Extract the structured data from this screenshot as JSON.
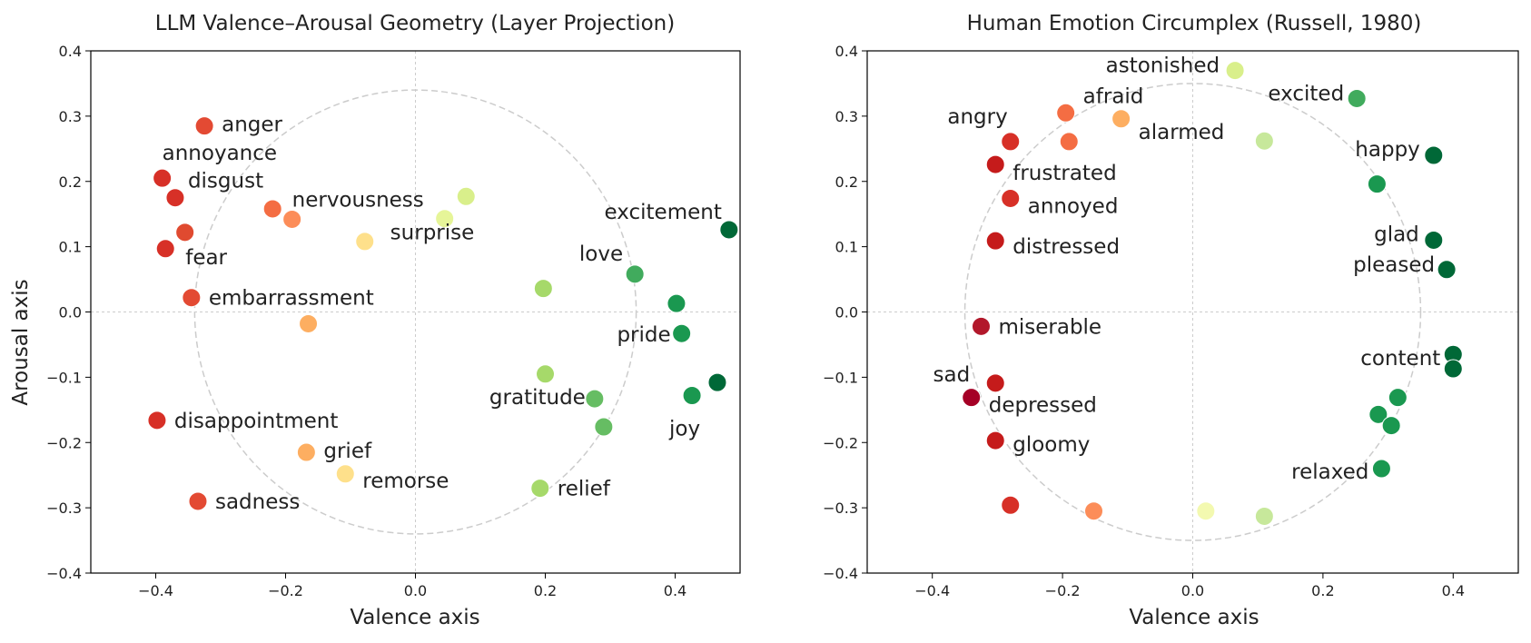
{
  "figure": {
    "panels": [
      {
        "title": "LLM Valence–Arousal Geometry (Layer Projection)",
        "xlabel": "Valence axis",
        "ylabel": "Arousal axis"
      },
      {
        "title": "Human Emotion Circumplex (Russell, 1980)",
        "xlabel": "Valence axis",
        "ylabel": ""
      }
    ]
  },
  "chart_data": [
    {
      "type": "scatter",
      "title": "LLM Valence–Arousal Geometry (Layer Projection)",
      "xlabel": "Valence axis",
      "ylabel": "Arousal axis",
      "xlim": [
        -0.5,
        0.5
      ],
      "ylim": [
        -0.4,
        0.4
      ],
      "xticks": [
        -0.4,
        -0.2,
        0.0,
        0.2,
        0.4
      ],
      "yticks": [
        -0.4,
        -0.3,
        -0.2,
        -0.1,
        0.0,
        0.1,
        0.2,
        0.3,
        0.4
      ],
      "grid": false,
      "reference_lines": "dotted lines at x=0 and y=0",
      "reference_circle": {
        "center": [
          0.0,
          0.0
        ],
        "radius": 0.34,
        "style": "dashed light gray"
      },
      "colormap": "red-yellow-green by valence",
      "points": [
        {
          "label": "anger",
          "x": -0.325,
          "y": 0.285,
          "color": "#e34a33"
        },
        {
          "label": "annoyance",
          "x": -0.39,
          "y": 0.205,
          "color": "#d73027"
        },
        {
          "label": "disgust",
          "x": -0.37,
          "y": 0.175,
          "color": "#d73027"
        },
        {
          "label": "",
          "x": -0.355,
          "y": 0.122,
          "color": "#e04a30"
        },
        {
          "label": "fear",
          "x": -0.385,
          "y": 0.097,
          "color": "#d73027"
        },
        {
          "label": "embarrassment",
          "x": -0.345,
          "y": 0.022,
          "color": "#e34a33"
        },
        {
          "label": "",
          "x": -0.22,
          "y": 0.158,
          "color": "#f46d43"
        },
        {
          "label": "nervousness",
          "x": -0.19,
          "y": 0.142,
          "color": "#fc8d59"
        },
        {
          "label": "",
          "x": 0.078,
          "y": 0.177,
          "color": "#d9ef8b"
        },
        {
          "label": "surprise",
          "x": 0.045,
          "y": 0.143,
          "color": "#e6f598"
        },
        {
          "label": "",
          "x": -0.078,
          "y": 0.108,
          "color": "#fee08b"
        },
        {
          "label": "",
          "x": -0.165,
          "y": -0.018,
          "color": "#fdae61"
        },
        {
          "label": "excitement",
          "x": 0.483,
          "y": 0.126,
          "color": "#006837"
        },
        {
          "label": "love",
          "x": 0.338,
          "y": 0.058,
          "color": "#41ab5d"
        },
        {
          "label": "",
          "x": 0.402,
          "y": 0.013,
          "color": "#1a9850"
        },
        {
          "label": "",
          "x": 0.197,
          "y": 0.036,
          "color": "#a6d96a"
        },
        {
          "label": "pride",
          "x": 0.41,
          "y": -0.033,
          "color": "#1a9850"
        },
        {
          "label": "",
          "x": 0.2,
          "y": -0.095,
          "color": "#a6d96a"
        },
        {
          "label": "",
          "x": 0.465,
          "y": -0.108,
          "color": "#006837"
        },
        {
          "label": "",
          "x": 0.426,
          "y": -0.128,
          "color": "#1a9850"
        },
        {
          "label": "joy",
          "x": 0.426,
          "y": -0.128,
          "color": "#1a9850",
          "label_only": true
        },
        {
          "label": "gratitude",
          "x": 0.276,
          "y": -0.133,
          "color": "#66bd63"
        },
        {
          "label": "",
          "x": 0.29,
          "y": -0.176,
          "color": "#66bd63"
        },
        {
          "label": "disappointment",
          "x": -0.398,
          "y": -0.166,
          "color": "#d73027"
        },
        {
          "label": "grief",
          "x": -0.168,
          "y": -0.215,
          "color": "#fdae61"
        },
        {
          "label": "remorse",
          "x": -0.108,
          "y": -0.248,
          "color": "#fee08b"
        },
        {
          "label": "relief",
          "x": 0.192,
          "y": -0.27,
          "color": "#a6d96a"
        },
        {
          "label": "sadness",
          "x": -0.335,
          "y": -0.29,
          "color": "#e34a33"
        }
      ]
    },
    {
      "type": "scatter",
      "title": "Human Emotion Circumplex (Russell, 1980)",
      "xlabel": "Valence axis",
      "ylabel": "",
      "xlim": [
        -0.5,
        0.5
      ],
      "ylim": [
        -0.4,
        0.4
      ],
      "xticks": [
        -0.4,
        -0.2,
        0.0,
        0.2,
        0.4
      ],
      "yticks": [
        -0.4,
        -0.3,
        -0.2,
        -0.1,
        0.0,
        0.1,
        0.2,
        0.3,
        0.4
      ],
      "grid": false,
      "reference_lines": "dotted lines at x=0 and y=0",
      "reference_circle": {
        "center": [
          0.0,
          0.0
        ],
        "radius": 0.35,
        "style": "dashed light gray"
      },
      "colormap": "red-yellow-green by valence",
      "points": [
        {
          "label": "astonished",
          "x": 0.065,
          "y": 0.37,
          "color": "#d9ef8b"
        },
        {
          "label": "excited",
          "x": 0.252,
          "y": 0.327,
          "color": "#41ab5d"
        },
        {
          "label": "afraid",
          "x": -0.195,
          "y": 0.305,
          "color": "#f46d43"
        },
        {
          "label": "alarmed",
          "x": -0.11,
          "y": 0.296,
          "color": "#fdae61"
        },
        {
          "label": "angry",
          "x": -0.28,
          "y": 0.261,
          "color": "#d73027"
        },
        {
          "label": "",
          "x": -0.19,
          "y": 0.261,
          "color": "#f46d43"
        },
        {
          "label": "",
          "x": 0.11,
          "y": 0.262,
          "color": "#c7e89b"
        },
        {
          "label": "happy",
          "x": 0.37,
          "y": 0.24,
          "color": "#006837"
        },
        {
          "label": "frustrated",
          "x": -0.303,
          "y": 0.226,
          "color": "#c51b1b"
        },
        {
          "label": "",
          "x": 0.283,
          "y": 0.196,
          "color": "#1a9850"
        },
        {
          "label": "annoyed",
          "x": -0.28,
          "y": 0.174,
          "color": "#d73027"
        },
        {
          "label": "glad",
          "x": 0.37,
          "y": 0.11,
          "color": "#006837"
        },
        {
          "label": "distressed",
          "x": -0.303,
          "y": 0.109,
          "color": "#c51b1b"
        },
        {
          "label": "pleased",
          "x": 0.39,
          "y": 0.065,
          "color": "#006837"
        },
        {
          "label": "miserable",
          "x": -0.325,
          "y": -0.022,
          "color": "#b2182b"
        },
        {
          "label": "content",
          "x": 0.4,
          "y": -0.065,
          "color": "#006837"
        },
        {
          "label": "",
          "x": 0.4,
          "y": -0.087,
          "color": "#006837"
        },
        {
          "label": "sad",
          "x": -0.303,
          "y": -0.109,
          "color": "#c51b1b"
        },
        {
          "label": "depressed",
          "x": -0.34,
          "y": -0.131,
          "color": "#a50026"
        },
        {
          "label": "",
          "x": 0.315,
          "y": -0.131,
          "color": "#1a9850"
        },
        {
          "label": "",
          "x": 0.285,
          "y": -0.157,
          "color": "#1a9850"
        },
        {
          "label": "",
          "x": 0.305,
          "y": -0.174,
          "color": "#1a9850"
        },
        {
          "label": "gloomy",
          "x": -0.303,
          "y": -0.197,
          "color": "#c51b1b"
        },
        {
          "label": "relaxed",
          "x": 0.29,
          "y": -0.24,
          "color": "#1a9850"
        },
        {
          "label": "",
          "x": -0.28,
          "y": -0.296,
          "color": "#d73027"
        },
        {
          "label": "",
          "x": -0.152,
          "y": -0.305,
          "color": "#fc8d59"
        },
        {
          "label": "",
          "x": 0.02,
          "y": -0.305,
          "color": "#f3f9b0"
        },
        {
          "label": "",
          "x": 0.11,
          "y": -0.313,
          "color": "#c7e89b"
        }
      ]
    }
  ]
}
